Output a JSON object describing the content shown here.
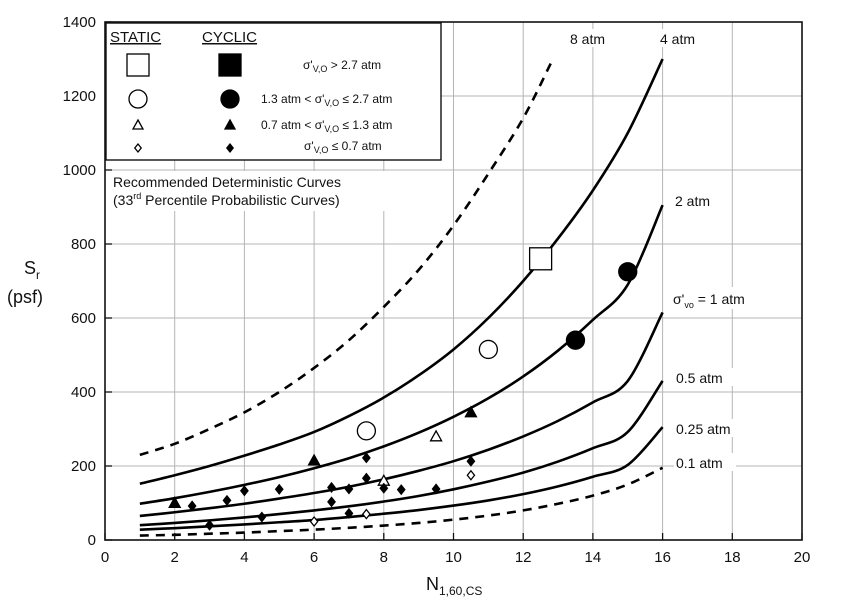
{
  "chart_data": {
    "type": "scatter",
    "xlabel": "N",
    "xlabel_sub": "1,60,CS",
    "ylabel_main": "S",
    "ylabel_sub": "r",
    "ylabel_units": "(psf)",
    "xlim": [
      0,
      20
    ],
    "ylim": [
      0,
      1400
    ],
    "xticks": [
      0,
      2,
      4,
      6,
      8,
      10,
      12,
      14,
      16,
      18,
      20
    ],
    "yticks": [
      0,
      200,
      400,
      600,
      800,
      1000,
      1200,
      1400
    ],
    "grid": true,
    "curve_note_line1": "Recommended Deterministic Curves",
    "curve_note_line2_pre": "(33",
    "curve_note_line2_sup": "rd",
    "curve_note_line2_post": " Percentile Probabilistic Curves)",
    "legend": {
      "header_static": "STATIC",
      "header_cyclic": "CYCLIC",
      "rows": [
        {
          "marker": "square",
          "pre": "σ'",
          "sub": "V,O",
          "post": " > 2.7 atm"
        },
        {
          "marker": "circle",
          "pre": "1.3 atm < σ'",
          "sub": "V,O",
          "post": " ≤ 2.7 atm"
        },
        {
          "marker": "triangle",
          "pre": "0.7 atm < σ'",
          "sub": "V,O",
          "post": " ≤ 1.3 atm"
        },
        {
          "marker": "diamond",
          "pre": "σ'",
          "sub": "V,O",
          "post": " ≤ 0.7 atm"
        }
      ]
    },
    "curves": [
      {
        "label": "8 atm",
        "style": "dashed",
        "x": [
          1,
          2,
          3,
          4,
          5,
          6,
          7,
          8,
          9,
          10,
          11,
          12,
          12.8
        ],
        "y": [
          230,
          260,
          300,
          345,
          400,
          465,
          540,
          630,
          730,
          850,
          990,
          1140,
          1290
        ]
      },
      {
        "label": "4 atm",
        "style": "solid",
        "x": [
          1,
          2,
          3,
          4,
          5,
          6,
          7,
          8,
          9,
          10,
          11,
          12,
          13,
          14,
          15,
          16
        ],
        "y": [
          152,
          175,
          200,
          228,
          258,
          292,
          335,
          385,
          445,
          515,
          600,
          700,
          815,
          945,
          1100,
          1300
        ]
      },
      {
        "label": "2 atm",
        "style": "solid",
        "x": [
          1,
          2,
          3,
          4,
          5,
          6,
          7,
          8,
          9,
          10,
          11,
          12,
          13,
          14,
          15,
          16
        ],
        "y": [
          98,
          113,
          130,
          149,
          170,
          194,
          221,
          253,
          290,
          333,
          383,
          442,
          512,
          595,
          690,
          905
        ]
      },
      {
        "label": "σ'vo = 1 atm",
        "style": "solid",
        "x": [
          1,
          2,
          3,
          4,
          5,
          6,
          7,
          8,
          9,
          10,
          11,
          12,
          13,
          14,
          15,
          16
        ],
        "y": [
          65,
          75,
          86,
          98,
          112,
          127,
          144,
          164,
          187,
          213,
          244,
          280,
          322,
          372,
          430,
          615
        ]
      },
      {
        "label": "0.5 atm",
        "style": "solid",
        "x": [
          1,
          2,
          3,
          4,
          5,
          6,
          7,
          8,
          9,
          10,
          11,
          12,
          13,
          14,
          15,
          16
        ],
        "y": [
          40,
          46,
          53,
          61,
          70,
          80,
          91,
          104,
          119,
          137,
          158,
          182,
          212,
          248,
          292,
          430
        ]
      },
      {
        "label": "0.25 atm",
        "style": "solid",
        "x": [
          1,
          2,
          3,
          4,
          5,
          6,
          7,
          8,
          9,
          10,
          11,
          12,
          13,
          14,
          15,
          16
        ],
        "y": [
          28,
          32,
          37,
          42,
          48,
          54,
          62,
          71,
          81,
          93,
          107,
          124,
          145,
          171,
          203,
          305
        ]
      },
      {
        "label": "0.1 atm",
        "style": "dashed",
        "x": [
          1,
          2,
          3,
          4,
          5,
          6,
          7,
          8,
          9,
          10,
          11,
          12,
          13,
          14,
          15,
          16
        ],
        "y": [
          12,
          14,
          17,
          20,
          24,
          28,
          33,
          39,
          46,
          55,
          66,
          80,
          98,
          120,
          150,
          195
        ]
      }
    ],
    "curve_labels": {
      "8 atm": "8 atm",
      "4 atm": "4 atm",
      "2 atm": "2 atm",
      "1 atm_pre": "σ'",
      "1 atm_sub": "vo",
      "1 atm_post": " = 1 atm",
      "0.5 atm": "0.5 atm",
      "0.25 atm": "0.25 atm",
      "0.1 atm": "0.1 atm"
    },
    "series": [
      {
        "marker": "square",
        "fill": "open",
        "points": [
          [
            12.5,
            760
          ]
        ]
      },
      {
        "marker": "circle",
        "fill": "open",
        "points": [
          [
            7.5,
            295
          ],
          [
            11,
            515
          ]
        ]
      },
      {
        "marker": "circle",
        "fill": "solid",
        "points": [
          [
            13.5,
            540
          ],
          [
            15,
            725
          ]
        ]
      },
      {
        "marker": "triangle",
        "fill": "open",
        "points": [
          [
            8,
            160
          ],
          [
            9.5,
            280
          ]
        ]
      },
      {
        "marker": "triangle",
        "fill": "solid",
        "points": [
          [
            2,
            100
          ],
          [
            6,
            215
          ],
          [
            10.5,
            345
          ]
        ]
      },
      {
        "marker": "diamond",
        "fill": "open",
        "points": [
          [
            6,
            50
          ],
          [
            7.5,
            70
          ],
          [
            10.5,
            175
          ]
        ]
      },
      {
        "marker": "diamond",
        "fill": "solid",
        "points": [
          [
            2.5,
            92
          ],
          [
            3,
            40
          ],
          [
            3.5,
            107
          ],
          [
            4,
            133
          ],
          [
            4.5,
            62
          ],
          [
            5,
            137
          ],
          [
            6.5,
            103
          ],
          [
            6.5,
            142
          ],
          [
            7,
            72
          ],
          [
            7,
            138
          ],
          [
            7.5,
            167
          ],
          [
            7.5,
            222
          ],
          [
            8,
            140
          ],
          [
            8.5,
            136
          ],
          [
            9.5,
            138
          ],
          [
            10.5,
            213
          ]
        ]
      }
    ]
  }
}
